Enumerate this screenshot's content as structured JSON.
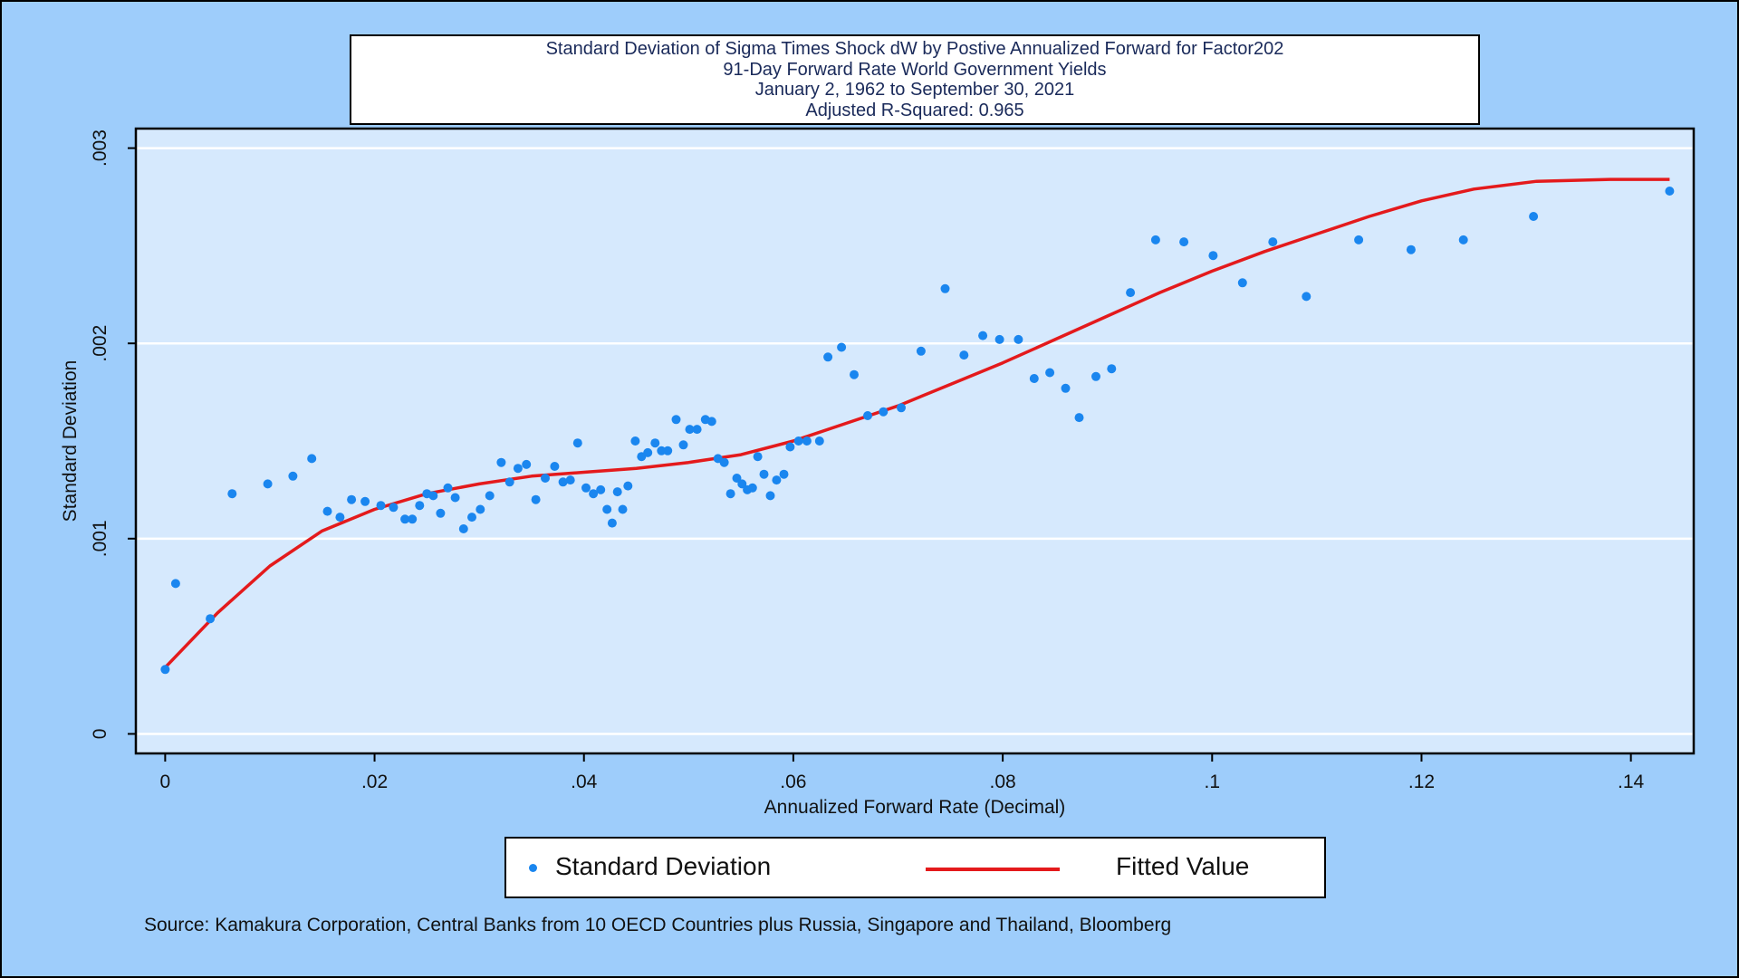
{
  "chart_data": {
    "type": "scatter",
    "title_lines": [
      "Standard Deviation of Sigma Times Shock dW by Postive Annualized Forward for Factor202",
      "91-Day Forward Rate World Government Yields",
      "January 2, 1962 to September 30, 2021",
      "Adjusted R-Squared: 0.965"
    ],
    "xlabel": "Annualized Forward Rate (Decimal)",
    "ylabel": "Standard Deviation",
    "xlim": [
      -0.0028,
      0.146
    ],
    "ylim": [
      -0.0001,
      0.0031
    ],
    "x_ticks": [
      0,
      0.02,
      0.04,
      0.06,
      0.08,
      0.1,
      0.12,
      0.14
    ],
    "x_tick_labels": [
      "0",
      ".02",
      ".04",
      ".06",
      ".08",
      ".1",
      ".12",
      ".14"
    ],
    "y_ticks": [
      0,
      0.001,
      0.002,
      0.003
    ],
    "y_tick_labels": [
      "0",
      ".001",
      ".002",
      ".003"
    ],
    "grid": "horizontal",
    "legend_position": "bottom",
    "colors": {
      "background": "#9ecdfb",
      "plot_area": "#d6e9fd",
      "points": "#1a86ef",
      "fit_line": "#e41a1c",
      "gridline": "#ffffff"
    },
    "series": [
      {
        "name": "Standard Deviation",
        "type": "scatter",
        "points": [
          [
            0.0,
            0.00033
          ],
          [
            0.001,
            0.00077
          ],
          [
            0.0043,
            0.00059
          ],
          [
            0.0064,
            0.00123
          ],
          [
            0.0098,
            0.00128
          ],
          [
            0.0122,
            0.00132
          ],
          [
            0.014,
            0.00141
          ],
          [
            0.0155,
            0.00114
          ],
          [
            0.0167,
            0.00111
          ],
          [
            0.0178,
            0.0012
          ],
          [
            0.0191,
            0.00119
          ],
          [
            0.0206,
            0.00117
          ],
          [
            0.0218,
            0.00116
          ],
          [
            0.0229,
            0.0011
          ],
          [
            0.0236,
            0.0011
          ],
          [
            0.0243,
            0.00117
          ],
          [
            0.025,
            0.00123
          ],
          [
            0.0256,
            0.00122
          ],
          [
            0.0263,
            0.00113
          ],
          [
            0.027,
            0.00126
          ],
          [
            0.0277,
            0.00121
          ],
          [
            0.0285,
            0.00105
          ],
          [
            0.0293,
            0.00111
          ],
          [
            0.0301,
            0.00115
          ],
          [
            0.031,
            0.00122
          ],
          [
            0.0321,
            0.00139
          ],
          [
            0.0329,
            0.00129
          ],
          [
            0.0337,
            0.00136
          ],
          [
            0.0345,
            0.00138
          ],
          [
            0.0354,
            0.0012
          ],
          [
            0.0363,
            0.00131
          ],
          [
            0.0372,
            0.00137
          ],
          [
            0.038,
            0.00129
          ],
          [
            0.0387,
            0.0013
          ],
          [
            0.0394,
            0.00149
          ],
          [
            0.0402,
            0.00126
          ],
          [
            0.0409,
            0.00123
          ],
          [
            0.0416,
            0.00125
          ],
          [
            0.0422,
            0.00115
          ],
          [
            0.0427,
            0.00108
          ],
          [
            0.0432,
            0.00124
          ],
          [
            0.0437,
            0.00115
          ],
          [
            0.0442,
            0.00127
          ],
          [
            0.0449,
            0.0015
          ],
          [
            0.0455,
            0.00142
          ],
          [
            0.0461,
            0.00144
          ],
          [
            0.0468,
            0.00149
          ],
          [
            0.0474,
            0.00145
          ],
          [
            0.048,
            0.00145
          ],
          [
            0.0488,
            0.00161
          ],
          [
            0.0495,
            0.00148
          ],
          [
            0.0501,
            0.00156
          ],
          [
            0.0508,
            0.00156
          ],
          [
            0.0516,
            0.00161
          ],
          [
            0.0522,
            0.0016
          ],
          [
            0.0528,
            0.00141
          ],
          [
            0.0534,
            0.00139
          ],
          [
            0.054,
            0.00123
          ],
          [
            0.0546,
            0.00131
          ],
          [
            0.0551,
            0.00128
          ],
          [
            0.0556,
            0.00125
          ],
          [
            0.0561,
            0.00126
          ],
          [
            0.0566,
            0.00142
          ],
          [
            0.0572,
            0.00133
          ],
          [
            0.0578,
            0.00122
          ],
          [
            0.0584,
            0.0013
          ],
          [
            0.0591,
            0.00133
          ],
          [
            0.0597,
            0.00147
          ],
          [
            0.0605,
            0.0015
          ],
          [
            0.0613,
            0.0015
          ],
          [
            0.0625,
            0.0015
          ],
          [
            0.0633,
            0.00193
          ],
          [
            0.0646,
            0.00198
          ],
          [
            0.0658,
            0.00184
          ],
          [
            0.0671,
            0.00163
          ],
          [
            0.0686,
            0.00165
          ],
          [
            0.0703,
            0.00167
          ],
          [
            0.0722,
            0.00196
          ],
          [
            0.0745,
            0.00228
          ],
          [
            0.0763,
            0.00194
          ],
          [
            0.0781,
            0.00204
          ],
          [
            0.0797,
            0.00202
          ],
          [
            0.0815,
            0.00202
          ],
          [
            0.083,
            0.00182
          ],
          [
            0.0845,
            0.00185
          ],
          [
            0.086,
            0.00177
          ],
          [
            0.0873,
            0.00162
          ],
          [
            0.0889,
            0.00183
          ],
          [
            0.0904,
            0.00187
          ],
          [
            0.0922,
            0.00226
          ],
          [
            0.0946,
            0.00253
          ],
          [
            0.0973,
            0.00252
          ],
          [
            0.1001,
            0.00245
          ],
          [
            0.1029,
            0.00231
          ],
          [
            0.1058,
            0.00252
          ],
          [
            0.109,
            0.00224
          ],
          [
            0.114,
            0.00253
          ],
          [
            0.119,
            0.00248
          ],
          [
            0.124,
            0.00253
          ],
          [
            0.1307,
            0.00265
          ],
          [
            0.1437,
            0.00278
          ]
        ]
      },
      {
        "name": "Fitted Value",
        "type": "line",
        "points": [
          [
            0.0,
            0.00034
          ],
          [
            0.005,
            0.00062
          ],
          [
            0.01,
            0.00086
          ],
          [
            0.015,
            0.00104
          ],
          [
            0.02,
            0.00115
          ],
          [
            0.025,
            0.00123
          ],
          [
            0.03,
            0.00128
          ],
          [
            0.035,
            0.00132
          ],
          [
            0.04,
            0.00134
          ],
          [
            0.045,
            0.00136
          ],
          [
            0.05,
            0.00139
          ],
          [
            0.055,
            0.00143
          ],
          [
            0.06,
            0.0015
          ],
          [
            0.065,
            0.00159
          ],
          [
            0.07,
            0.00168
          ],
          [
            0.075,
            0.00179
          ],
          [
            0.08,
            0.0019
          ],
          [
            0.085,
            0.00202
          ],
          [
            0.09,
            0.00214
          ],
          [
            0.095,
            0.00226
          ],
          [
            0.1,
            0.00237
          ],
          [
            0.105,
            0.00247
          ],
          [
            0.11,
            0.00256
          ],
          [
            0.115,
            0.00265
          ],
          [
            0.12,
            0.00273
          ],
          [
            0.125,
            0.00279
          ],
          [
            0.131,
            0.00283
          ],
          [
            0.138,
            0.00284
          ],
          [
            0.1437,
            0.00284
          ]
        ]
      }
    ]
  },
  "legend": {
    "scatter_label": "Standard Deviation",
    "line_label": "Fitted Value"
  },
  "source": "Source: Kamakura Corporation, Central Banks from 10 OECD Countries plus Russia, Singapore and Thailand, Bloomberg"
}
